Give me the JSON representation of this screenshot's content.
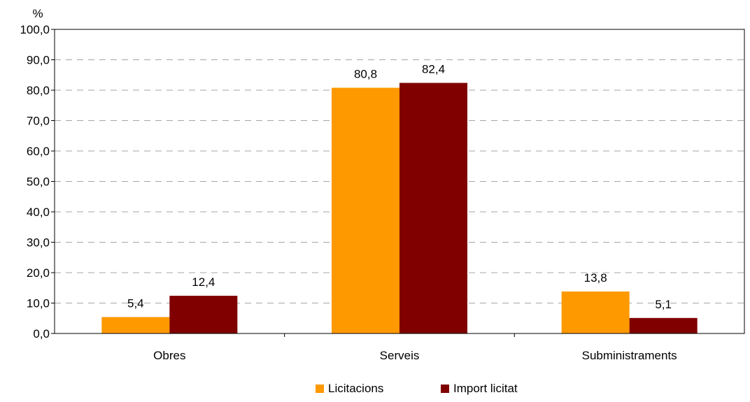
{
  "chart_data": {
    "type": "bar",
    "unit_label": "%",
    "categories": [
      "Obres",
      "Serveis",
      "Subministraments"
    ],
    "series": [
      {
        "name": "Licitacions",
        "color": "#FF9900",
        "values": [
          5.4,
          80.8,
          13.8
        ]
      },
      {
        "name": "Import licitat",
        "color": "#800000",
        "values": [
          12.4,
          82.4,
          5.1
        ]
      }
    ],
    "value_labels": [
      [
        "5,4",
        "80,8",
        "13,8"
      ],
      [
        "12,4",
        "82,4",
        "5,1"
      ]
    ],
    "ylim": [
      0,
      100
    ],
    "y_ticks": [
      "0,0",
      "10,0",
      "20,0",
      "30,0",
      "40,0",
      "50,0",
      "60,0",
      "70,0",
      "80,0",
      "90,0",
      "100,0"
    ],
    "grid": true,
    "legend_position": "bottom"
  }
}
